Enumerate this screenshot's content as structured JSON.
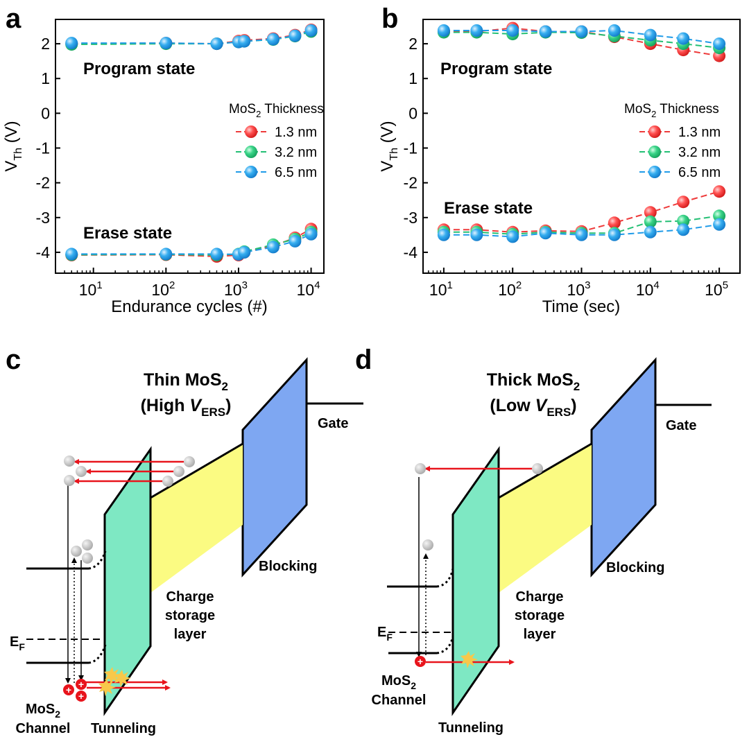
{
  "panels": {
    "a": {
      "letter": "a"
    },
    "b": {
      "letter": "b"
    },
    "c": {
      "letter": "c"
    },
    "d": {
      "letter": "d"
    }
  },
  "chart_data": [
    {
      "panel": "a",
      "type": "line",
      "xscale": "log",
      "xlabel": "Endurance cycles (#)",
      "ylabel_main": "V",
      "ylabel_sub": "Th",
      "ylabel_unit": " (V)",
      "xlim": [
        3,
        15000
      ],
      "ylim": [
        -4.6,
        2.7
      ],
      "xticks": [
        10,
        100,
        1000,
        10000
      ],
      "xtick_labels": [
        {
          "base": "10",
          "exp": "1"
        },
        {
          "base": "10",
          "exp": "2"
        },
        {
          "base": "10",
          "exp": "3"
        },
        {
          "base": "10",
          "exp": "4"
        }
      ],
      "yticks": [
        2,
        1,
        0,
        -1,
        -2,
        -3,
        -4
      ],
      "ytick_labels": [
        "2",
        "1",
        "0",
        "-1",
        "-2",
        "-3",
        "-4"
      ],
      "annotations": {
        "upper": "Program state",
        "lower": "Erase state"
      },
      "legend": {
        "title_main": "MoS",
        "title_sub": "2",
        "title_rest": " Thickness",
        "placement": "center-right"
      },
      "x": [
        5,
        100,
        500,
        1000,
        1200,
        3000,
        6000,
        10000
      ],
      "series": [
        {
          "name": "1.3 nm",
          "color": "#ee3a3a",
          "program": [
            2.0,
            2.02,
            2.0,
            2.08,
            2.1,
            2.15,
            2.25,
            2.4
          ],
          "erase": [
            -4.08,
            -4.07,
            -4.12,
            -4.08,
            -4.0,
            -3.82,
            -3.58,
            -3.33
          ]
        },
        {
          "name": "3.2 nm",
          "color": "#22bf73",
          "program": [
            1.98,
            2.0,
            2.0,
            2.05,
            2.07,
            2.12,
            2.22,
            2.35
          ],
          "erase": [
            -4.07,
            -4.06,
            -4.08,
            -4.05,
            -3.98,
            -3.78,
            -3.62,
            -3.42
          ]
        },
        {
          "name": "6.5 nm",
          "color": "#1f9be8",
          "program": [
            2.02,
            2.02,
            2.0,
            2.05,
            2.07,
            2.13,
            2.23,
            2.38
          ],
          "erase": [
            -4.05,
            -4.05,
            -4.05,
            -4.06,
            -4.0,
            -3.85,
            -3.68,
            -3.48
          ]
        }
      ]
    },
    {
      "panel": "b",
      "type": "line",
      "xscale": "log",
      "xlabel": "Time (sec)",
      "ylabel_main": "V",
      "ylabel_sub": "Th",
      "ylabel_unit": " (V)",
      "xlim": [
        5,
        200000
      ],
      "ylim": [
        -4.6,
        2.7
      ],
      "xticks": [
        10,
        100,
        1000,
        10000,
        100000
      ],
      "xtick_labels": [
        {
          "base": "10",
          "exp": "1"
        },
        {
          "base": "10",
          "exp": "2"
        },
        {
          "base": "10",
          "exp": "3"
        },
        {
          "base": "10",
          "exp": "4"
        },
        {
          "base": "10",
          "exp": "5"
        }
      ],
      "yticks": [
        2,
        1,
        0,
        -1,
        -2,
        -3,
        -4
      ],
      "ytick_labels": [
        "2",
        "1",
        "0",
        "-1",
        "-2",
        "-3",
        "-4"
      ],
      "annotations": {
        "upper": "Program state",
        "lower": "Erase state"
      },
      "legend": {
        "title_main": "MoS",
        "title_sub": "2",
        "title_rest": " Thickness",
        "placement": "center-right"
      },
      "x": [
        10,
        30,
        100,
        300,
        1000,
        3000,
        10000,
        30000,
        100000
      ],
      "series": [
        {
          "name": "1.3 nm",
          "color": "#ee3a3a",
          "program": [
            2.35,
            2.35,
            2.45,
            2.35,
            2.35,
            2.2,
            2.0,
            1.82,
            1.65
          ],
          "erase": [
            -3.35,
            -3.35,
            -3.42,
            -3.38,
            -3.4,
            -3.15,
            -2.85,
            -2.55,
            -2.25
          ]
        },
        {
          "name": "3.2 nm",
          "color": "#22bf73",
          "program": [
            2.33,
            2.33,
            2.28,
            2.33,
            2.32,
            2.22,
            2.1,
            2.0,
            1.88
          ],
          "erase": [
            -3.42,
            -3.42,
            -3.48,
            -3.42,
            -3.45,
            -3.45,
            -3.12,
            -3.1,
            -2.95
          ]
        },
        {
          "name": "6.5 nm",
          "color": "#1f9be8",
          "program": [
            2.38,
            2.38,
            2.38,
            2.35,
            2.35,
            2.38,
            2.25,
            2.15,
            2.0
          ],
          "erase": [
            -3.5,
            -3.5,
            -3.55,
            -3.45,
            -3.5,
            -3.5,
            -3.42,
            -3.35,
            -3.2
          ]
        }
      ]
    }
  ],
  "diagrams": {
    "c": {
      "title_line1": "Thin MoS",
      "title_sub": "2",
      "title_line2_pre": "(High ",
      "title_v": "V",
      "title_vsub": "ERS",
      "title_line2_post": ")",
      "gate": "Gate",
      "blocking": "Blocking",
      "storage_1": "Charge",
      "storage_2": "storage",
      "storage_3": "layer",
      "fermi": "E",
      "fermi_sub": "F",
      "channel_1": "MoS",
      "channel_sub": "2",
      "channel_2": "Channel",
      "tunneling": "Tunneling"
    },
    "d": {
      "title_line1": "Thick MoS",
      "title_sub": "2",
      "title_line2_pre": "(Low ",
      "title_v": "V",
      "title_vsub": "ERS",
      "title_line2_post": ")",
      "gate": "Gate",
      "blocking": "Blocking",
      "storage_1": "Charge",
      "storage_2": "storage",
      "storage_3": "layer",
      "fermi": "E",
      "fermi_sub": "F",
      "channel_1": "MoS",
      "channel_sub": "2",
      "channel_2": "Channel",
      "tunneling": "Tunneling"
    },
    "colors": {
      "tunnel": "#7ee8c3",
      "storage": "#fbfb82",
      "blocking": "#7ea7f2",
      "arrow": "#e8141c",
      "electron": "#c8c8c8",
      "hole": "#e8141c",
      "spark": "#f8c84a"
    }
  }
}
